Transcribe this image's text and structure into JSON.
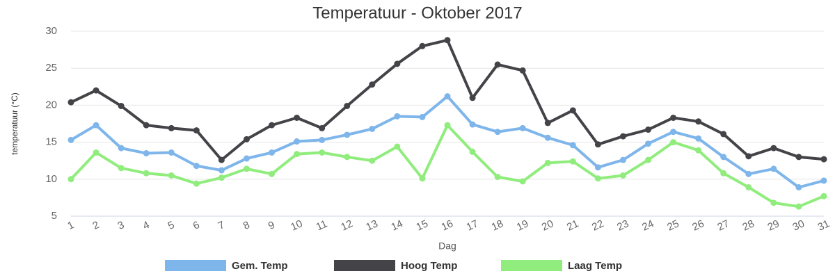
{
  "chart_data": {
    "type": "line",
    "title": "Temperatuur - Oktober 2017",
    "x_label": "Dag",
    "y_label": "temperatuur (°C)",
    "categories": [
      "1",
      "2",
      "3",
      "4",
      "5",
      "6",
      "7",
      "8",
      "9",
      "10",
      "11",
      "12",
      "13",
      "14",
      "15",
      "16",
      "17",
      "18",
      "19",
      "20",
      "21",
      "22",
      "23",
      "24",
      "25",
      "26",
      "27",
      "28",
      "29",
      "30",
      "31"
    ],
    "series": [
      {
        "name": "Gem. Temp",
        "color": "#7eb5ea",
        "values": [
          15.3,
          17.3,
          14.2,
          13.5,
          13.6,
          11.8,
          11.2,
          12.8,
          13.6,
          15.1,
          15.3,
          16.0,
          16.8,
          18.5,
          18.4,
          21.2,
          17.4,
          16.4,
          16.9,
          15.6,
          14.6,
          11.6,
          12.6,
          14.8,
          16.4,
          15.5,
          13.0,
          10.7,
          11.4,
          8.9,
          9.8
        ]
      },
      {
        "name": "Hoog Temp",
        "color": "#434348",
        "values": [
          20.4,
          22.0,
          19.9,
          17.3,
          16.9,
          16.6,
          12.6,
          15.4,
          17.3,
          18.3,
          16.9,
          19.9,
          22.8,
          25.6,
          28.0,
          28.8,
          21.0,
          25.5,
          24.7,
          17.6,
          19.3,
          14.7,
          15.8,
          16.7,
          18.3,
          17.8,
          16.1,
          13.1,
          14.2,
          13.0,
          12.7
        ]
      },
      {
        "name": "Laag Temp",
        "color": "#90ed7d",
        "values": [
          10.0,
          13.6,
          11.5,
          10.8,
          10.5,
          9.4,
          10.2,
          11.4,
          10.7,
          13.4,
          13.6,
          13.0,
          12.5,
          14.4,
          10.1,
          17.3,
          13.7,
          10.3,
          9.7,
          12.2,
          12.4,
          10.1,
          10.5,
          12.6,
          15.0,
          13.9,
          10.8,
          8.9,
          6.8,
          6.3,
          7.7
        ]
      }
    ],
    "ylim": [
      5,
      30
    ],
    "yticks": [
      5,
      10,
      15,
      20,
      25,
      30
    ],
    "grid": true,
    "legend": "bottom"
  }
}
